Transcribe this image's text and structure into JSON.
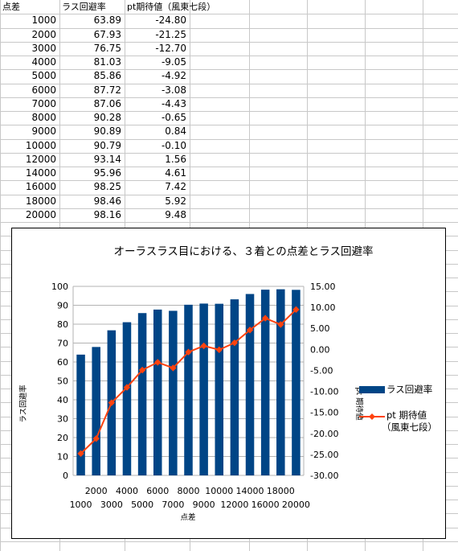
{
  "table": {
    "headers": [
      "点差",
      "ラス回避率",
      "pt期待値（風東七段）"
    ],
    "rows": [
      [
        "1000",
        "63.89",
        "-24.80"
      ],
      [
        "2000",
        "67.93",
        "-21.25"
      ],
      [
        "3000",
        "76.75",
        "-12.70"
      ],
      [
        "4000",
        "81.03",
        "-9.05"
      ],
      [
        "5000",
        "85.86",
        "-4.92"
      ],
      [
        "6000",
        "87.72",
        "-3.08"
      ],
      [
        "7000",
        "87.06",
        "-4.43"
      ],
      [
        "8000",
        "90.28",
        "-0.65"
      ],
      [
        "9000",
        "90.89",
        "0.84"
      ],
      [
        "10000",
        "90.79",
        "-0.10"
      ],
      [
        "12000",
        "93.14",
        "1.56"
      ],
      [
        "14000",
        "95.96",
        "4.61"
      ],
      [
        "16000",
        "98.25",
        "7.42"
      ],
      [
        "18000",
        "98.46",
        "5.92"
      ],
      [
        "20000",
        "98.16",
        "9.48"
      ]
    ]
  },
  "chart_data": {
    "type": "bar",
    "title": "オーラスラス目における、３着との点差とラス回避率",
    "xlabel": "点差",
    "ylabel": "ラス回避率",
    "y2label": "pt 期待値",
    "categories": [
      "1000",
      "2000",
      "3000",
      "4000",
      "5000",
      "6000",
      "7000",
      "8000",
      "9000",
      "10000",
      "12000",
      "14000",
      "16000",
      "18000",
      "20000"
    ],
    "series": [
      {
        "name": "ラス回避率",
        "kind": "bar",
        "axis": "left",
        "color": "#004586",
        "values": [
          63.89,
          67.93,
          76.75,
          81.03,
          85.86,
          87.72,
          87.06,
          90.28,
          90.89,
          90.79,
          93.14,
          95.96,
          98.25,
          98.46,
          98.16
        ]
      },
      {
        "name": "pt 期待値\n（風東七段）",
        "kind": "line",
        "axis": "right",
        "color": "#ff420e",
        "values": [
          -24.8,
          -21.25,
          -12.7,
          -9.05,
          -4.92,
          -3.08,
          -4.43,
          -0.65,
          0.84,
          -0.1,
          1.56,
          4.61,
          7.42,
          5.92,
          9.48
        ]
      }
    ],
    "ylim": [
      0,
      100
    ],
    "ytick_labels": [
      "0",
      "10",
      "20",
      "30",
      "40",
      "50",
      "60",
      "70",
      "80",
      "90",
      "100"
    ],
    "y2lim": [
      -30,
      15
    ],
    "y2tick_labels": [
      "-30.00",
      "-25.00",
      "-20.00",
      "-15.00",
      "-10.00",
      "-5.00",
      "0.00",
      "5.00",
      "10.00",
      "15.00"
    ],
    "grid": "horizontal",
    "legend": "right"
  }
}
